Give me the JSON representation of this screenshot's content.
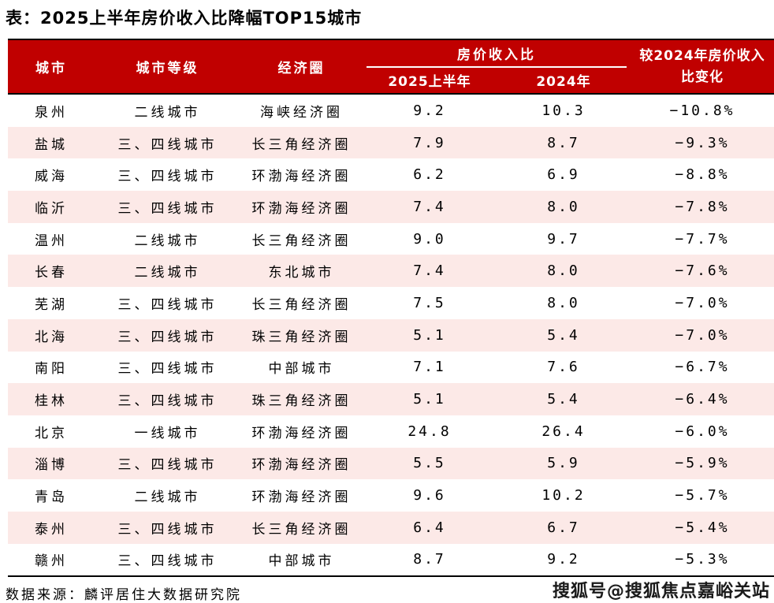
{
  "page": {
    "title": "表：2025上半年房价收入比降幅TOP15城市"
  },
  "colors": {
    "header_red": "#c00000",
    "row_pink": "#fce9e7",
    "border_black": "#000000",
    "header_text": "#ffffff"
  },
  "table": {
    "headers": {
      "city": "城市",
      "tier": "城市等级",
      "region": "经济圈",
      "ratio_group": "房价收入比",
      "h1_2025": "2025上半年",
      "y2024": "2024年",
      "change_line1": "较2024年房价收入",
      "change_line2": "比变化"
    },
    "rows": [
      {
        "city": "泉州",
        "tier": "二线城市",
        "region": "海峡经济圈",
        "v2025": "9.2",
        "v2024": "10.3",
        "change": "−10.8%"
      },
      {
        "city": "盐城",
        "tier": "三、四线城市",
        "region": "长三角经济圈",
        "v2025": "7.9",
        "v2024": "8.7",
        "change": "−9.3%"
      },
      {
        "city": "威海",
        "tier": "三、四线城市",
        "region": "环渤海经济圈",
        "v2025": "6.2",
        "v2024": "6.9",
        "change": "−8.8%"
      },
      {
        "city": "临沂",
        "tier": "三、四线城市",
        "region": "环渤海经济圈",
        "v2025": "7.4",
        "v2024": "8.0",
        "change": "−7.8%"
      },
      {
        "city": "温州",
        "tier": "二线城市",
        "region": "长三角经济圈",
        "v2025": "9.0",
        "v2024": "9.7",
        "change": "−7.7%"
      },
      {
        "city": "长春",
        "tier": "二线城市",
        "region": "东北城市",
        "v2025": "7.4",
        "v2024": "8.0",
        "change": "−7.6%"
      },
      {
        "city": "芜湖",
        "tier": "三、四线城市",
        "region": "长三角经济圈",
        "v2025": "7.5",
        "v2024": "8.0",
        "change": "−7.0%"
      },
      {
        "city": "北海",
        "tier": "三、四线城市",
        "region": "珠三角经济圈",
        "v2025": "5.1",
        "v2024": "5.4",
        "change": "−7.0%"
      },
      {
        "city": "南阳",
        "tier": "三、四线城市",
        "region": "中部城市",
        "v2025": "7.1",
        "v2024": "7.6",
        "change": "−6.7%"
      },
      {
        "city": "桂林",
        "tier": "三、四线城市",
        "region": "珠三角经济圈",
        "v2025": "5.1",
        "v2024": "5.4",
        "change": "−6.4%"
      },
      {
        "city": "北京",
        "tier": "一线城市",
        "region": "环渤海经济圈",
        "v2025": "24.8",
        "v2024": "26.4",
        "change": "−6.0%"
      },
      {
        "city": "淄博",
        "tier": "三、四线城市",
        "region": "环渤海经济圈",
        "v2025": "5.5",
        "v2024": "5.9",
        "change": "−5.9%"
      },
      {
        "city": "青岛",
        "tier": "二线城市",
        "region": "环渤海经济圈",
        "v2025": "9.6",
        "v2024": "10.2",
        "change": "−5.7%"
      },
      {
        "city": "泰州",
        "tier": "三、四线城市",
        "region": "长三角经济圈",
        "v2025": "6.4",
        "v2024": "6.7",
        "change": "−5.4%"
      },
      {
        "city": "赣州",
        "tier": "三、四线城市",
        "region": "中部城市",
        "v2025": "8.7",
        "v2024": "9.2",
        "change": "−5.3%"
      }
    ]
  },
  "footer": {
    "source": "数据来源：麟评居住大数据研究院",
    "watermark": "搜狐号@搜狐焦点嘉峪关站"
  }
}
